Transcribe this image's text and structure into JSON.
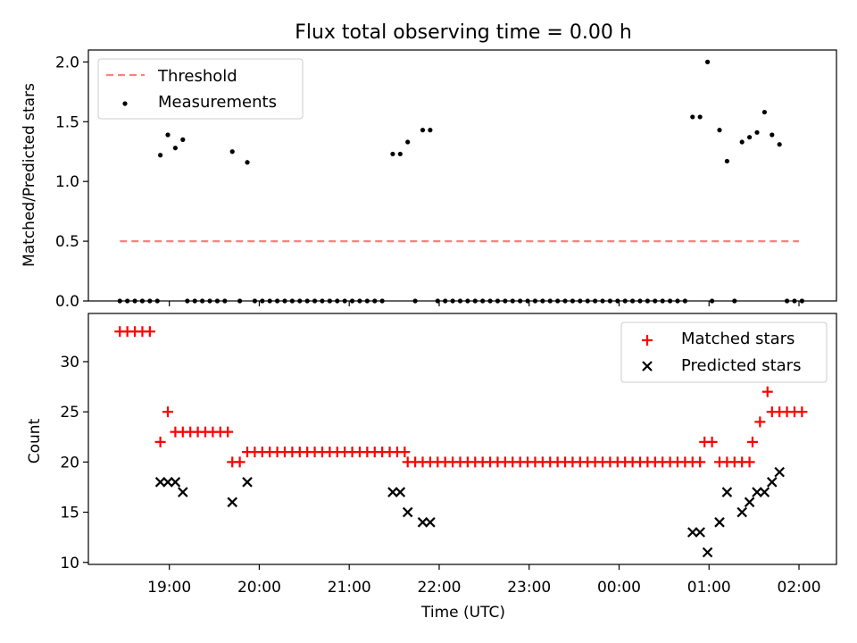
{
  "title": "Flux total observing time = 0.00 h",
  "colors": {
    "threshold": "#ff7f7f",
    "matched": "#ff0000",
    "predicted": "#000000",
    "measurements": "#000000"
  },
  "chart_data": [
    {
      "type": "scatter",
      "ylabel": "Matched/Predicted stars",
      "xlabel": "",
      "ylim": [
        0,
        2.1
      ],
      "yticks": [
        0.0,
        0.5,
        1.0,
        1.5,
        2.0
      ],
      "ytick_labels": [
        "0.0",
        "0.5",
        "1.0",
        "1.5",
        "2.0"
      ],
      "xlim": [
        "18:06",
        "02:25"
      ],
      "legend": {
        "placement": "upper-left",
        "entries": [
          "Threshold",
          "Measurements"
        ]
      },
      "threshold": {
        "name": "Threshold",
        "value": 0.5,
        "x_start": "18:27",
        "x_end": "02:00"
      },
      "series": [
        {
          "name": "Measurements",
          "points": [
            [
              "18:27",
              0
            ],
            [
              "18:32",
              0
            ],
            [
              "18:37",
              0
            ],
            [
              "18:42",
              0
            ],
            [
              "18:47",
              0
            ],
            [
              "18:52",
              0
            ],
            [
              "18:54",
              1.22
            ],
            [
              "18:59",
              1.39
            ],
            [
              "19:04",
              1.28
            ],
            [
              "19:09",
              1.35
            ],
            [
              "19:12",
              0
            ],
            [
              "19:17",
              0
            ],
            [
              "19:22",
              0
            ],
            [
              "19:27",
              0
            ],
            [
              "19:32",
              0
            ],
            [
              "19:37",
              0
            ],
            [
              "19:42",
              1.25
            ],
            [
              "19:47",
              0
            ],
            [
              "19:52",
              1.16
            ],
            [
              "19:57",
              0
            ],
            [
              "20:02",
              0
            ],
            [
              "20:07",
              0
            ],
            [
              "20:12",
              0
            ],
            [
              "20:17",
              0
            ],
            [
              "20:22",
              0
            ],
            [
              "20:27",
              0
            ],
            [
              "20:32",
              0
            ],
            [
              "20:37",
              0
            ],
            [
              "20:42",
              0
            ],
            [
              "20:47",
              0
            ],
            [
              "20:52",
              0
            ],
            [
              "20:57",
              0
            ],
            [
              "21:02",
              0
            ],
            [
              "21:07",
              0
            ],
            [
              "21:12",
              0
            ],
            [
              "21:17",
              0
            ],
            [
              "21:22",
              0
            ],
            [
              "21:29",
              1.23
            ],
            [
              "21:34",
              1.23
            ],
            [
              "21:39",
              1.33
            ],
            [
              "21:44",
              0
            ],
            [
              "21:49",
              1.43
            ],
            [
              "21:54",
              1.43
            ],
            [
              "21:59",
              0
            ],
            [
              "22:04",
              0
            ],
            [
              "22:09",
              0
            ],
            [
              "22:14",
              0
            ],
            [
              "22:19",
              0
            ],
            [
              "22:24",
              0
            ],
            [
              "22:29",
              0
            ],
            [
              "22:34",
              0
            ],
            [
              "22:39",
              0
            ],
            [
              "22:44",
              0
            ],
            [
              "22:49",
              0
            ],
            [
              "22:54",
              0
            ],
            [
              "22:59",
              0
            ],
            [
              "23:04",
              0
            ],
            [
              "23:09",
              0
            ],
            [
              "23:14",
              0
            ],
            [
              "23:19",
              0
            ],
            [
              "23:24",
              0
            ],
            [
              "23:29",
              0
            ],
            [
              "23:34",
              0
            ],
            [
              "23:39",
              0
            ],
            [
              "23:44",
              0
            ],
            [
              "23:49",
              0
            ],
            [
              "23:54",
              0
            ],
            [
              "23:59",
              0
            ],
            [
              "00:04",
              0
            ],
            [
              "00:09",
              0
            ],
            [
              "00:14",
              0
            ],
            [
              "00:19",
              0
            ],
            [
              "00:24",
              0
            ],
            [
              "00:29",
              0
            ],
            [
              "00:34",
              0
            ],
            [
              "00:39",
              0
            ],
            [
              "00:44",
              0
            ],
            [
              "00:49",
              1.54
            ],
            [
              "00:54",
              1.54
            ],
            [
              "00:59",
              2.0
            ],
            [
              "01:02",
              0
            ],
            [
              "01:07",
              1.43
            ],
            [
              "01:12",
              1.17
            ],
            [
              "01:17",
              0
            ],
            [
              "01:22",
              1.33
            ],
            [
              "01:27",
              1.37
            ],
            [
              "01:32",
              1.41
            ],
            [
              "01:37",
              1.58
            ],
            [
              "01:42",
              1.39
            ],
            [
              "01:47",
              1.31
            ],
            [
              "01:52",
              0
            ],
            [
              "01:57",
              0
            ],
            [
              "02:02",
              0
            ]
          ]
        }
      ]
    },
    {
      "type": "scatter",
      "ylabel": "Count",
      "xlabel": "Time (UTC)",
      "ylim": [
        9.8,
        34.8
      ],
      "yticks": [
        10,
        15,
        20,
        25,
        30
      ],
      "ytick_labels": [
        "10",
        "15",
        "20",
        "25",
        "30"
      ],
      "xlim": [
        "18:06",
        "02:25"
      ],
      "xticks": [
        "19:00",
        "20:00",
        "21:00",
        "22:00",
        "23:00",
        "00:00",
        "01:00",
        "02:00"
      ],
      "xtick_labels": [
        "19:00",
        "20:00",
        "21:00",
        "22:00",
        "23:00",
        "00:00",
        "01:00",
        "02:00"
      ],
      "legend": {
        "placement": "upper-right",
        "entries": [
          "Matched stars",
          "Predicted stars"
        ]
      },
      "series": [
        {
          "name": "Matched stars",
          "points": [
            [
              "18:27",
              33
            ],
            [
              "18:32",
              33
            ],
            [
              "18:37",
              33
            ],
            [
              "18:42",
              33
            ],
            [
              "18:47",
              33
            ],
            [
              "18:54",
              22
            ],
            [
              "18:59",
              25
            ],
            [
              "19:04",
              23
            ],
            [
              "19:09",
              23
            ],
            [
              "19:14",
              23
            ],
            [
              "19:19",
              23
            ],
            [
              "19:24",
              23
            ],
            [
              "19:29",
              23
            ],
            [
              "19:34",
              23
            ],
            [
              "19:39",
              23
            ],
            [
              "19:42",
              20
            ],
            [
              "19:47",
              20
            ],
            [
              "19:52",
              21
            ],
            [
              "19:57",
              21
            ],
            [
              "20:02",
              21
            ],
            [
              "20:07",
              21
            ],
            [
              "20:12",
              21
            ],
            [
              "20:17",
              21
            ],
            [
              "20:22",
              21
            ],
            [
              "20:27",
              21
            ],
            [
              "20:32",
              21
            ],
            [
              "20:37",
              21
            ],
            [
              "20:42",
              21
            ],
            [
              "20:47",
              21
            ],
            [
              "20:52",
              21
            ],
            [
              "20:57",
              21
            ],
            [
              "21:02",
              21
            ],
            [
              "21:07",
              21
            ],
            [
              "21:12",
              21
            ],
            [
              "21:17",
              21
            ],
            [
              "21:22",
              21
            ],
            [
              "21:27",
              21
            ],
            [
              "21:32",
              21
            ],
            [
              "21:37",
              21
            ],
            [
              "21:39",
              20
            ],
            [
              "21:44",
              20
            ],
            [
              "21:49",
              20
            ],
            [
              "21:54",
              20
            ],
            [
              "21:59",
              20
            ],
            [
              "22:04",
              20
            ],
            [
              "22:09",
              20
            ],
            [
              "22:14",
              20
            ],
            [
              "22:19",
              20
            ],
            [
              "22:24",
              20
            ],
            [
              "22:29",
              20
            ],
            [
              "22:34",
              20
            ],
            [
              "22:39",
              20
            ],
            [
              "22:44",
              20
            ],
            [
              "22:49",
              20
            ],
            [
              "22:54",
              20
            ],
            [
              "22:59",
              20
            ],
            [
              "23:04",
              20
            ],
            [
              "23:09",
              20
            ],
            [
              "23:14",
              20
            ],
            [
              "23:19",
              20
            ],
            [
              "23:24",
              20
            ],
            [
              "23:29",
              20
            ],
            [
              "23:34",
              20
            ],
            [
              "23:39",
              20
            ],
            [
              "23:44",
              20
            ],
            [
              "23:49",
              20
            ],
            [
              "23:54",
              20
            ],
            [
              "23:59",
              20
            ],
            [
              "00:04",
              20
            ],
            [
              "00:09",
              20
            ],
            [
              "00:14",
              20
            ],
            [
              "00:19",
              20
            ],
            [
              "00:24",
              20
            ],
            [
              "00:29",
              20
            ],
            [
              "00:34",
              20
            ],
            [
              "00:39",
              20
            ],
            [
              "00:44",
              20
            ],
            [
              "00:49",
              20
            ],
            [
              "00:54",
              20
            ],
            [
              "00:57",
              22
            ],
            [
              "01:02",
              22
            ],
            [
              "01:07",
              20
            ],
            [
              "01:12",
              20
            ],
            [
              "01:17",
              20
            ],
            [
              "01:22",
              20
            ],
            [
              "01:27",
              20
            ],
            [
              "01:29",
              22
            ],
            [
              "01:34",
              24
            ],
            [
              "01:39",
              27
            ],
            [
              "01:42",
              25
            ],
            [
              "01:47",
              25
            ],
            [
              "01:52",
              25
            ],
            [
              "01:57",
              25
            ],
            [
              "02:02",
              25
            ]
          ]
        },
        {
          "name": "Predicted stars",
          "points": [
            [
              "18:54",
              18
            ],
            [
              "18:59",
              18
            ],
            [
              "19:04",
              18
            ],
            [
              "19:09",
              17
            ],
            [
              "19:42",
              16
            ],
            [
              "19:52",
              18
            ],
            [
              "21:29",
              17
            ],
            [
              "21:34",
              17
            ],
            [
              "21:39",
              15
            ],
            [
              "21:49",
              14
            ],
            [
              "21:54",
              14
            ],
            [
              "00:49",
              13
            ],
            [
              "00:54",
              13
            ],
            [
              "00:59",
              11
            ],
            [
              "01:07",
              14
            ],
            [
              "01:12",
              17
            ],
            [
              "01:22",
              15
            ],
            [
              "01:27",
              16
            ],
            [
              "01:32",
              17
            ],
            [
              "01:37",
              17
            ],
            [
              "01:42",
              18
            ],
            [
              "01:47",
              19
            ]
          ]
        }
      ]
    }
  ]
}
